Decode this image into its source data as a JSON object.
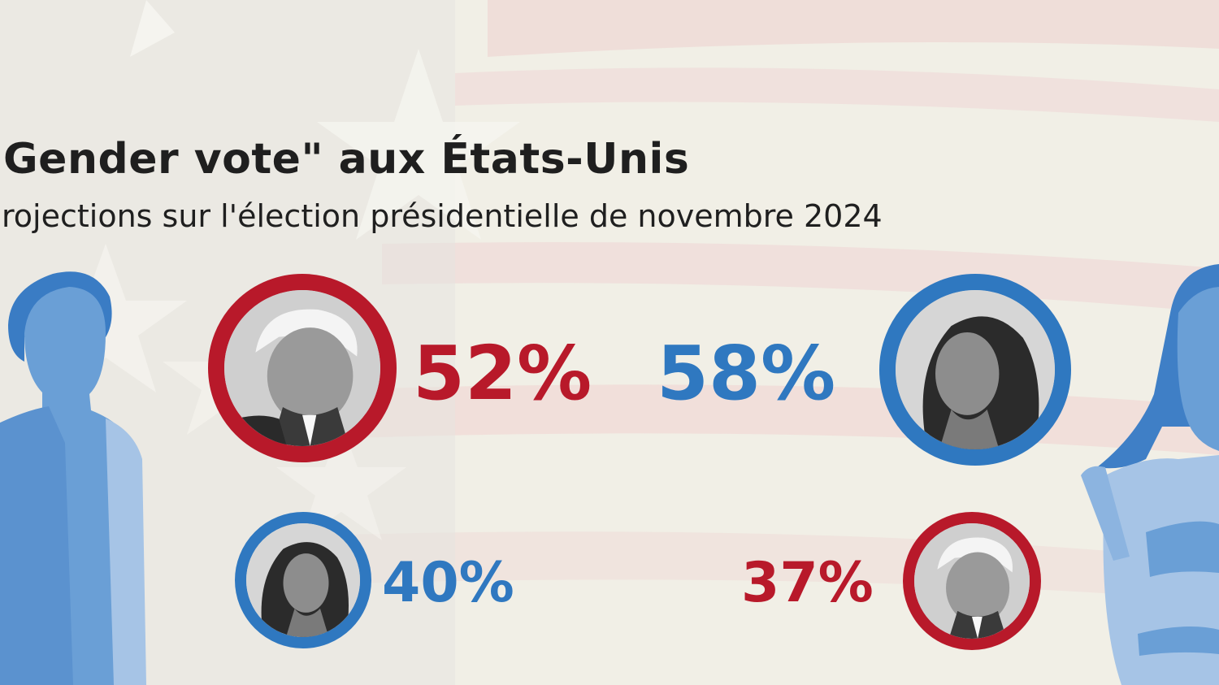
{
  "title": "Gender vote\" aux États-Unis",
  "subtitle": "rojections sur l'élection présidentielle de novembre 2024",
  "colors": {
    "red": "#b8192a",
    "blue": "#2f78c0",
    "silhouette": "#6a9fd6",
    "silhouette_light": "#a6c4e6"
  },
  "icons": {
    "man": "man-silhouette",
    "woman": "woman-silhouette"
  },
  "chart_data": {
    "type": "table",
    "title": "Gender vote\" aux États-Unis",
    "subtitle": "rojections sur l'élection présidentielle de novembre 2024",
    "rows": [
      {
        "group_icon": "man-silhouette",
        "entries": [
          {
            "portrait": "trump-portrait",
            "value": 52,
            "label": "52%",
            "color": "#b8192a"
          },
          {
            "portrait": "harris-portrait",
            "value": 40,
            "label": "40%",
            "color": "#2f78c0"
          }
        ]
      },
      {
        "group_icon": "woman-silhouette",
        "entries": [
          {
            "portrait": "harris-portrait",
            "value": 58,
            "label": "58%",
            "color": "#2f78c0"
          },
          {
            "portrait": "trump-portrait",
            "value": 37,
            "label": "37%",
            "color": "#b8192a"
          }
        ]
      }
    ]
  }
}
